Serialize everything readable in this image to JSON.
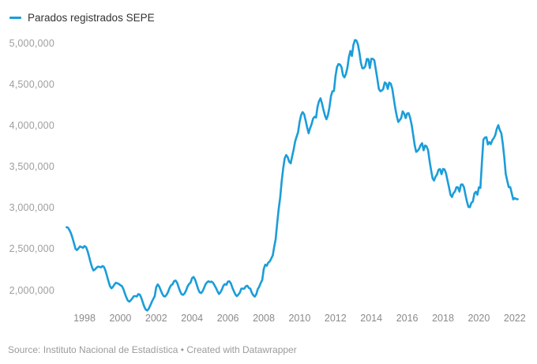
{
  "legend": {
    "label": "Parados registrados SEPE"
  },
  "footer": {
    "source": "Source: Instituto Nacional de Estadística • Created with Datawrapper"
  },
  "colors": {
    "line": "#1b9dd9",
    "legend_text": "#333333",
    "y_tick_label": "#9e9e9e",
    "x_tick_label": "#8a8a8a",
    "footer_text": "#9b9b9b",
    "background": "#ffffff"
  },
  "chart_data": {
    "type": "line",
    "title": "",
    "legend_position": "top-left",
    "grid": false,
    "series_name": "Parados registrados SEPE",
    "unit": "persons",
    "x_start_year": 1997,
    "x_start_month": 1,
    "x_interval": "monthly",
    "x_end_year": 2022,
    "x_end_month": 3,
    "xlim": [
      1997.0,
      2022.25
    ],
    "ylim": [
      1700000,
      5100000
    ],
    "y_ticks": [
      {
        "value": 5000000,
        "label": "5,000,000"
      },
      {
        "value": 4500000,
        "label": "4,500,000"
      },
      {
        "value": 4000000,
        "label": "4,000,000"
      },
      {
        "value": 3500000,
        "label": "3,500,000"
      },
      {
        "value": 3000000,
        "label": "3,000,000"
      },
      {
        "value": 2500000,
        "label": "2,500,000"
      },
      {
        "value": 2000000,
        "label": "2,000,000"
      }
    ],
    "x_ticks": [
      {
        "value": 1998,
        "label": "1998"
      },
      {
        "value": 2000,
        "label": "2000"
      },
      {
        "value": 2002,
        "label": "2002"
      },
      {
        "value": 2004,
        "label": "2004"
      },
      {
        "value": 2006,
        "label": "2006"
      },
      {
        "value": 2008,
        "label": "2008"
      },
      {
        "value": 2010,
        "label": "2010"
      },
      {
        "value": 2012,
        "label": "2012"
      },
      {
        "value": 2014,
        "label": "2014"
      },
      {
        "value": 2016,
        "label": "2016"
      },
      {
        "value": 2018,
        "label": "2018"
      },
      {
        "value": 2020,
        "label": "2020"
      },
      {
        "value": 2022,
        "label": "2022"
      }
    ],
    "values": [
      2770000,
      2762000,
      2731000,
      2692000,
      2636000,
      2570000,
      2505000,
      2492000,
      2513000,
      2536000,
      2528000,
      2519000,
      2541000,
      2528000,
      2483000,
      2417000,
      2345000,
      2284000,
      2245000,
      2255000,
      2276000,
      2291000,
      2288000,
      2281000,
      2298000,
      2288000,
      2245000,
      2180000,
      2115000,
      2055000,
      2028000,
      2043000,
      2073000,
      2095000,
      2089000,
      2080000,
      2065000,
      2056000,
      2019000,
      1966000,
      1917000,
      1878000,
      1866000,
      1881000,
      1905000,
      1931000,
      1933000,
      1928000,
      1957000,
      1951000,
      1912000,
      1858000,
      1805000,
      1769000,
      1758000,
      1779000,
      1817000,
      1860000,
      1898000,
      1930000,
      2040000,
      2075000,
      2050000,
      2005000,
      1962000,
      1932000,
      1928000,
      1950000,
      1985000,
      2035000,
      2065000,
      2078000,
      2115000,
      2122000,
      2095000,
      2040000,
      1990000,
      1955000,
      1948000,
      1965000,
      2000000,
      2050000,
      2080000,
      2097000,
      2150000,
      2165000,
      2135000,
      2080000,
      2020000,
      1980000,
      1970000,
      1990000,
      2030000,
      2075000,
      2100000,
      2113000,
      2103000,
      2109000,
      2096000,
      2065000,
      2032000,
      1992000,
      1958000,
      1978000,
      2014000,
      2060000,
      2079000,
      2070000,
      2109000,
      2112000,
      2086000,
      2034000,
      1992000,
      1953000,
      1932000,
      1951000,
      1975000,
      2023000,
      2024000,
      2023000,
      2053000,
      2059000,
      2032000,
      2023000,
      1973000,
      1943000,
      1927000,
      1954000,
      2017000,
      2048000,
      2093000,
      2130000,
      2262000,
      2315000,
      2301000,
      2339000,
      2354000,
      2390000,
      2427000,
      2530000,
      2625000,
      2818000,
      2989000,
      3129000,
      3328000,
      3482000,
      3605000,
      3645000,
      3620000,
      3564000,
      3544000,
      3629000,
      3709000,
      3808000,
      3869000,
      3924000,
      4049000,
      4130000,
      4166000,
      4142000,
      4066000,
      3982000,
      3909000,
      3970000,
      4018000,
      4086000,
      4110000,
      4100000,
      4231000,
      4299000,
      4334000,
      4269000,
      4190000,
      4122000,
      4080000,
      4131000,
      4227000,
      4361000,
      4420000,
      4422000,
      4600000,
      4712000,
      4750000,
      4744000,
      4714000,
      4615000,
      4588000,
      4626000,
      4705000,
      4834000,
      4908000,
      4848000,
      4981000,
      5040000,
      5035000,
      4989000,
      4891000,
      4764000,
      4699000,
      4699000,
      4724000,
      4811000,
      4809000,
      4701000,
      4814000,
      4813000,
      4795000,
      4684000,
      4572000,
      4450000,
      4420000,
      4428000,
      4448000,
      4527000,
      4512000,
      4448000,
      4525000,
      4512000,
      4452000,
      4333000,
      4215000,
      4120000,
      4046000,
      4068000,
      4094000,
      4176000,
      4149000,
      4093000,
      4150000,
      4153000,
      4094000,
      4011000,
      3891000,
      3767000,
      3683000,
      3697000,
      3720000,
      3765000,
      3789000,
      3703000,
      3761000,
      3750000,
      3702000,
      3573000,
      3461000,
      3362000,
      3336000,
      3382000,
      3410000,
      3467000,
      3474000,
      3413000,
      3476000,
      3470000,
      3422000,
      3336000,
      3252000,
      3162000,
      3136000,
      3183000,
      3203000,
      3255000,
      3253000,
      3202000,
      3286000,
      3289000,
      3255000,
      3164000,
      3080000,
      3015000,
      3012000,
      3066000,
      3080000,
      3178000,
      3199000,
      3164000,
      3254000,
      3246000,
      3548000,
      3831000,
      3857000,
      3862000,
      3773000,
      3802000,
      3777000,
      3826000,
      3851000,
      3889000,
      3964000,
      4008000,
      3949000,
      3910000,
      3781000,
      3614000,
      3416000,
      3334000,
      3257000,
      3257000,
      3182000,
      3106000,
      3123000,
      3111000,
      3109000
    ]
  }
}
